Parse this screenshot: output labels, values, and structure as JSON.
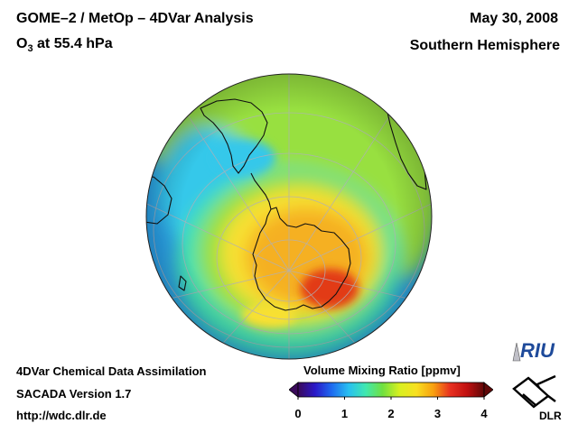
{
  "header": {
    "title": "GOME–2 / MetOp – 4DVar Analysis",
    "species_main": "O",
    "species_sub": "3",
    "level": " at 55.4 hPa",
    "date": "May 30, 2008",
    "hemisphere": "Southern Hemisphere"
  },
  "footer": {
    "line1": "4DVar Chemical Data Assimilation",
    "line2": "SACADA Version 1.7",
    "line3": "http://wdc.dlr.de"
  },
  "colorbar": {
    "title": "Volume Mixing Ratio [ppmv]",
    "ticks": [
      "0",
      "1",
      "2",
      "3",
      "4"
    ],
    "range": [
      0,
      4
    ],
    "colors": [
      "#3a0a5a",
      "#2a18c8",
      "#1e6cf0",
      "#28c0f0",
      "#40e8b0",
      "#70e040",
      "#d8f020",
      "#f8e020",
      "#f8a010",
      "#e83020",
      "#c01010",
      "#600808"
    ]
  },
  "logos": {
    "riu": "RIU",
    "dlr": "DLR"
  },
  "map": {
    "projection": "orthographic",
    "center": "South Pole",
    "colors": {
      "ozone_hole_core": "#e23a12",
      "high": "#f5b020",
      "mid_high": "#f8e030",
      "mid": "#98e040",
      "low_mid": "#44e0b0",
      "low": "#36c8ea",
      "lowest": "#2aa0e8",
      "coastline": "#101010",
      "graticule": "#b0b0b8"
    }
  }
}
